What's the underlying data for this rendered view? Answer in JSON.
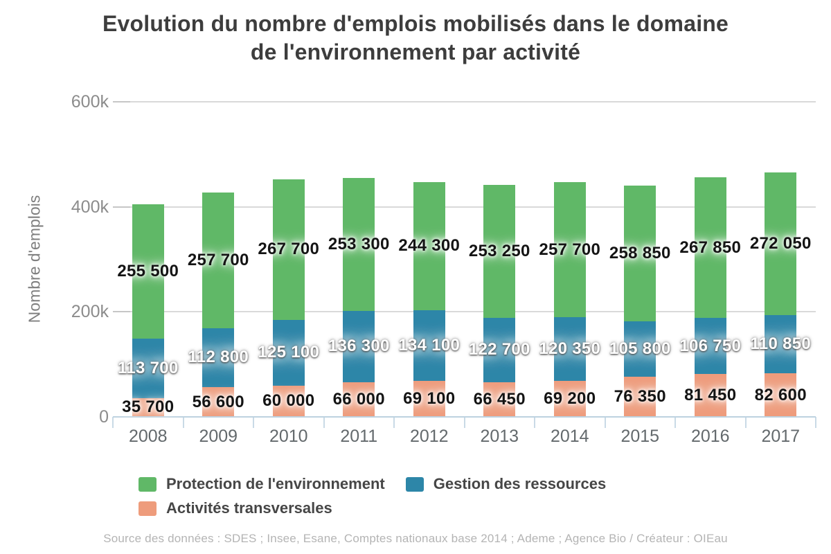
{
  "title": {
    "line1": "Evolution du nombre d'emplois mobilisés dans le domaine",
    "line2": "de l'environnement par activité"
  },
  "chart_data": {
    "type": "bar",
    "stacked": true,
    "title": "Evolution du nombre d'emplois mobilisés dans le domaine de l'environnement par activité",
    "categories": [
      "2008",
      "2009",
      "2010",
      "2011",
      "2012",
      "2013",
      "2014",
      "2015",
      "2016",
      "2017"
    ],
    "series": [
      {
        "key": "protection-environnement",
        "name": "Protection de l'environnement",
        "color": "#60b867",
        "label_color": "#141414",
        "label_glow": "light",
        "values": [
          255500,
          257700,
          267700,
          253300,
          244300,
          253250,
          257700,
          258850,
          267850,
          272050
        ]
      },
      {
        "key": "gestion-ressources",
        "name": "Gestion des ressources",
        "color": "#2d86a8",
        "label_color": "#ffffff",
        "label_glow": "dark",
        "values": [
          113700,
          112800,
          125100,
          136300,
          134100,
          122700,
          120350,
          105800,
          106750,
          110850
        ]
      },
      {
        "key": "activites-transversales",
        "name": "Activités transversales",
        "color": "#ee9c7c",
        "label_color": "#141414",
        "label_glow": "light",
        "values": [
          35700,
          56600,
          60000,
          66000,
          69100,
          66450,
          69200,
          76350,
          81450,
          82600
        ]
      }
    ],
    "xlabel": "",
    "ylabel": "Nombre d'emplois",
    "ylim": [
      0,
      600000
    ],
    "yticks": [
      {
        "label": "0",
        "value": 0
      },
      {
        "label": "200k",
        "value": 200000
      },
      {
        "label": "400k",
        "value": 400000
      },
      {
        "label": "600k",
        "value": 600000
      }
    ],
    "grid": true,
    "legend_position": "bottom",
    "value_format": "space-thousands"
  },
  "footer": {
    "source": "Source des données : SDES ; Insee, Esane, Comptes nationaux base 2014 ; Ademe ; Agence Bio / Créateur : OIEau"
  }
}
